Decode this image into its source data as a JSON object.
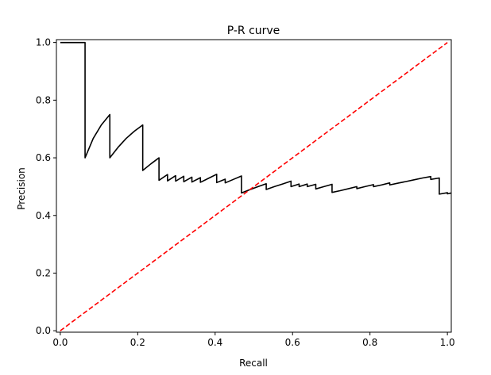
{
  "chart_data": {
    "type": "line",
    "title": "P-R curve",
    "xlabel": "Recall",
    "ylabel": "Precision",
    "xlim": [
      -0.01,
      1.01
    ],
    "ylim": [
      -0.005,
      1.01
    ],
    "xticks": [
      0.0,
      0.2,
      0.4,
      0.6,
      0.8,
      1.0
    ],
    "yticks": [
      0.0,
      0.2,
      0.4,
      0.6,
      0.8,
      1.0
    ],
    "xtick_labels": [
      "0.0",
      "0.2",
      "0.4",
      "0.6",
      "0.8",
      "1.0"
    ],
    "ytick_labels": [
      "0.0",
      "0.2",
      "0.4",
      "0.6",
      "0.8",
      "1.0"
    ],
    "grid": false,
    "series": [
      {
        "name": "pr_curve",
        "color": "#000000",
        "linestyle": "solid",
        "points": [
          [
            0.0,
            1.0
          ],
          [
            0.064,
            1.0
          ],
          [
            0.064,
            0.6
          ],
          [
            0.085,
            0.667
          ],
          [
            0.106,
            0.714
          ],
          [
            0.128,
            0.75
          ],
          [
            0.128,
            0.6
          ],
          [
            0.149,
            0.636
          ],
          [
            0.17,
            0.667
          ],
          [
            0.191,
            0.692
          ],
          [
            0.213,
            0.714
          ],
          [
            0.213,
            0.556
          ],
          [
            0.234,
            0.579
          ],
          [
            0.255,
            0.6
          ],
          [
            0.255,
            0.522
          ],
          [
            0.277,
            0.542
          ],
          [
            0.277,
            0.52
          ],
          [
            0.298,
            0.538
          ],
          [
            0.298,
            0.519
          ],
          [
            0.319,
            0.536
          ],
          [
            0.319,
            0.517
          ],
          [
            0.34,
            0.533
          ],
          [
            0.34,
            0.516
          ],
          [
            0.362,
            0.531
          ],
          [
            0.362,
            0.515
          ],
          [
            0.383,
            0.529
          ],
          [
            0.404,
            0.543
          ],
          [
            0.404,
            0.514
          ],
          [
            0.426,
            0.526
          ],
          [
            0.426,
            0.513
          ],
          [
            0.447,
            0.525
          ],
          [
            0.468,
            0.537
          ],
          [
            0.468,
            0.478
          ],
          [
            0.489,
            0.489
          ],
          [
            0.511,
            0.5
          ],
          [
            0.532,
            0.51
          ],
          [
            0.532,
            0.49
          ],
          [
            0.553,
            0.5
          ],
          [
            0.574,
            0.509
          ],
          [
            0.596,
            0.519
          ],
          [
            0.596,
            0.5
          ],
          [
            0.617,
            0.509
          ],
          [
            0.617,
            0.5
          ],
          [
            0.638,
            0.509
          ],
          [
            0.638,
            0.5
          ],
          [
            0.66,
            0.508
          ],
          [
            0.66,
            0.492
          ],
          [
            0.681,
            0.5
          ],
          [
            0.702,
            0.508
          ],
          [
            0.702,
            0.48
          ],
          [
            0.723,
            0.486
          ],
          [
            0.745,
            0.493
          ],
          [
            0.766,
            0.5
          ],
          [
            0.766,
            0.493
          ],
          [
            0.787,
            0.5
          ],
          [
            0.809,
            0.507
          ],
          [
            0.809,
            0.5
          ],
          [
            0.83,
            0.506
          ],
          [
            0.851,
            0.513
          ],
          [
            0.851,
            0.506
          ],
          [
            0.872,
            0.512
          ],
          [
            0.894,
            0.518
          ],
          [
            0.915,
            0.524
          ],
          [
            0.936,
            0.53
          ],
          [
            0.957,
            0.535
          ],
          [
            0.957,
            0.525
          ],
          [
            0.979,
            0.53
          ],
          [
            0.979,
            0.474
          ],
          [
            1.0,
            0.479
          ],
          [
            1.0,
            0.475
          ],
          [
            1.01,
            0.478
          ]
        ]
      },
      {
        "name": "diagonal",
        "color": "#ff0000",
        "linestyle": "dashed",
        "points": [
          [
            0.0,
            0.0
          ],
          [
            1.0,
            1.0
          ]
        ]
      }
    ]
  }
}
